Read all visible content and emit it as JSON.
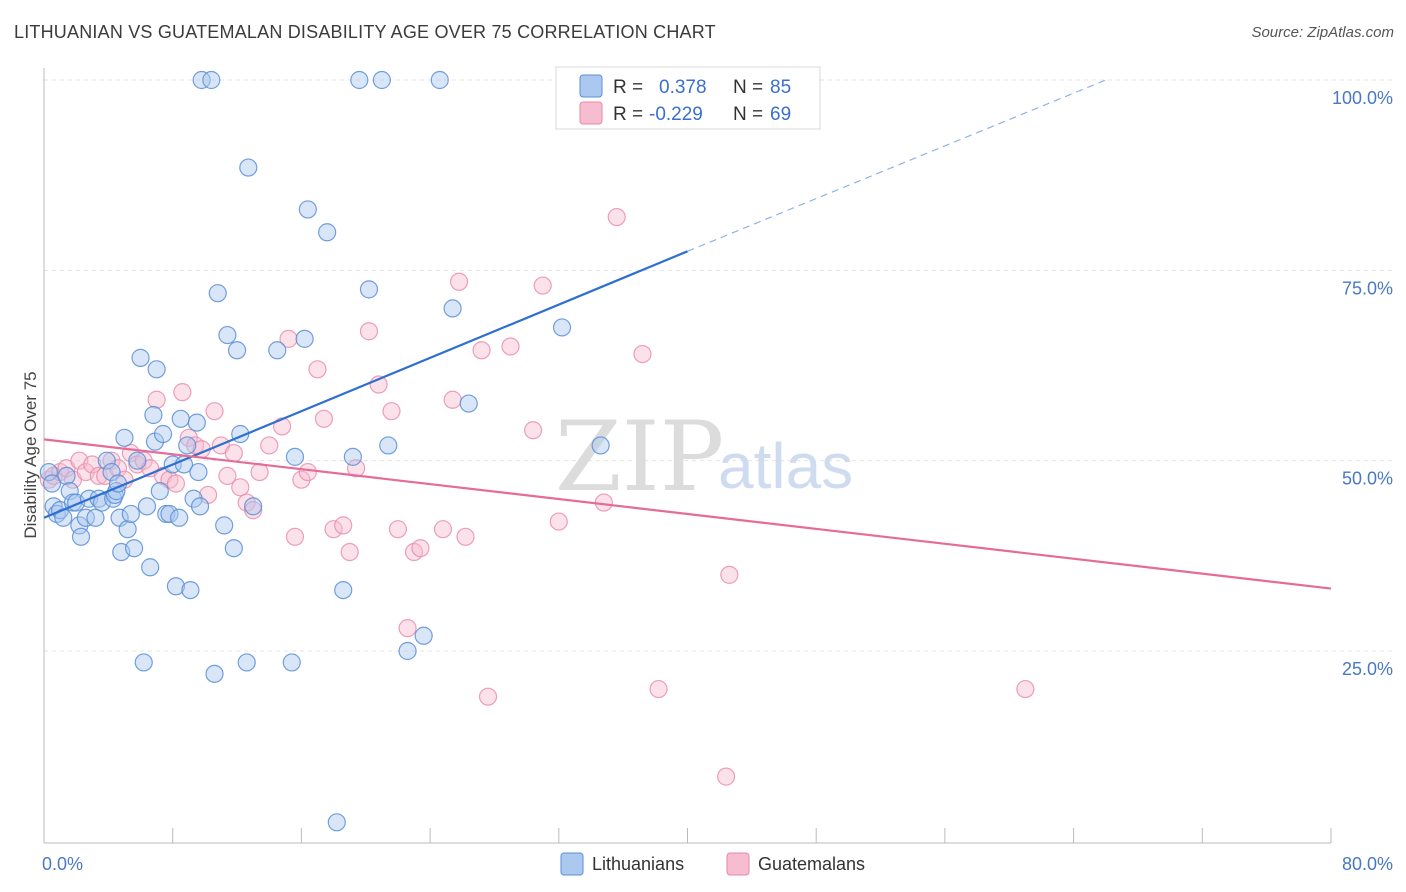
{
  "header": {
    "title": "LITHUANIAN VS GUATEMALAN DISABILITY AGE OVER 75 CORRELATION CHART",
    "source": "Source: ZipAtlas.com"
  },
  "legend": {
    "rows": [
      {
        "r_label": "R =",
        "r_value": "0.378",
        "n_label": "N =",
        "n_value": "85",
        "color": "#aac8f0",
        "stroke": "#5b8fd6"
      },
      {
        "r_label": "R =",
        "r_value": "-0.229",
        "n_label": "N =",
        "n_value": "69",
        "color": "#f6bcd0",
        "stroke": "#e889a8"
      }
    ]
  },
  "watermark": {
    "zip": "ZIP",
    "atlas": "atlas"
  },
  "chart_data": {
    "type": "scatter",
    "title": "LITHUANIAN VS GUATEMALAN DISABILITY AGE OVER 75 CORRELATION CHART",
    "xlabel": "",
    "ylabel": "Disability Age Over 75",
    "xlim": [
      0,
      80
    ],
    "ylim": [
      0,
      105
    ],
    "x_tick_labels": [
      "0.0%",
      "80.0%"
    ],
    "y_tick_labels": [
      "100.0%",
      "75.0%",
      "50.0%",
      "25.0%"
    ],
    "y_ticks": [
      100,
      75,
      50,
      25
    ],
    "grid": true,
    "legend_position": "top-center",
    "series": [
      {
        "name": "Lithuanians",
        "color": "#5b8fd6",
        "fill": "#aac8f0",
        "points": [
          [
            0.3,
            48.5
          ],
          [
            0.5,
            47
          ],
          [
            0.6,
            44
          ],
          [
            0.8,
            43
          ],
          [
            1,
            43.5
          ],
          [
            1.2,
            42.5
          ],
          [
            1.4,
            48
          ],
          [
            1.6,
            46
          ],
          [
            1.8,
            44.5
          ],
          [
            2,
            44.5
          ],
          [
            2.2,
            41.5
          ],
          [
            2.3,
            40
          ],
          [
            2.6,
            42.5
          ],
          [
            2.8,
            45
          ],
          [
            3.2,
            42.5
          ],
          [
            3.4,
            45
          ],
          [
            3.6,
            44.5
          ],
          [
            3.9,
            50
          ],
          [
            4.2,
            48.5
          ],
          [
            4.3,
            45
          ],
          [
            4.4,
            45.5
          ],
          [
            4.5,
            46
          ],
          [
            4.6,
            47
          ],
          [
            4.7,
            42.5
          ],
          [
            4.8,
            38
          ],
          [
            5,
            53
          ],
          [
            5.2,
            41
          ],
          [
            5.4,
            43
          ],
          [
            5.6,
            38.5
          ],
          [
            5.8,
            50
          ],
          [
            6,
            63.5
          ],
          [
            6.2,
            23.5
          ],
          [
            6.4,
            44
          ],
          [
            6.6,
            36
          ],
          [
            6.8,
            56
          ],
          [
            6.9,
            52.5
          ],
          [
            7,
            62
          ],
          [
            7.2,
            46
          ],
          [
            7.4,
            53.5
          ],
          [
            7.6,
            43
          ],
          [
            7.8,
            43
          ],
          [
            8,
            49.5
          ],
          [
            8.2,
            33.5
          ],
          [
            8.4,
            42.5
          ],
          [
            8.5,
            55.5
          ],
          [
            8.7,
            49.5
          ],
          [
            8.9,
            52
          ],
          [
            9.1,
            33
          ],
          [
            9.3,
            45
          ],
          [
            9.5,
            55
          ],
          [
            9.6,
            48.5
          ],
          [
            9.7,
            44
          ],
          [
            9.8,
            100
          ],
          [
            10.4,
            100
          ],
          [
            10.6,
            22
          ],
          [
            10.8,
            72
          ],
          [
            11.2,
            41.5
          ],
          [
            11.4,
            66.5
          ],
          [
            11.8,
            38.5
          ],
          [
            12,
            64.5
          ],
          [
            12.2,
            53.5
          ],
          [
            12.6,
            23.5
          ],
          [
            12.7,
            88.5
          ],
          [
            13,
            44
          ],
          [
            14.5,
            64.5
          ],
          [
            15.4,
            23.5
          ],
          [
            15.6,
            50.5
          ],
          [
            16.2,
            66
          ],
          [
            16.4,
            83
          ],
          [
            17.6,
            80
          ],
          [
            18.2,
            2.5
          ],
          [
            18.6,
            33
          ],
          [
            19.2,
            50.5
          ],
          [
            19.6,
            100
          ],
          [
            20.2,
            72.5
          ],
          [
            21,
            100
          ],
          [
            21.4,
            52
          ],
          [
            22.6,
            25
          ],
          [
            23.6,
            27
          ],
          [
            24.6,
            100
          ],
          [
            25.4,
            70
          ],
          [
            26.4,
            57.5
          ],
          [
            32.2,
            67.5
          ],
          [
            34.6,
            52
          ],
          [
            38,
            100
          ]
        ]
      },
      {
        "name": "Guatemalans",
        "color": "#e889a8",
        "fill": "#f6bcd0",
        "points": [
          [
            0.3,
            47.5
          ],
          [
            0.6,
            48
          ],
          [
            1,
            48.5
          ],
          [
            1.4,
            49
          ],
          [
            1.8,
            47.5
          ],
          [
            2.2,
            50
          ],
          [
            2.6,
            48.5
          ],
          [
            3,
            49.5
          ],
          [
            3.4,
            48
          ],
          [
            3.8,
            48
          ],
          [
            4.2,
            50
          ],
          [
            4.6,
            49
          ],
          [
            5,
            47.5
          ],
          [
            5.4,
            51
          ],
          [
            5.8,
            49.5
          ],
          [
            6.2,
            50
          ],
          [
            6.6,
            49
          ],
          [
            7,
            58
          ],
          [
            7.4,
            48
          ],
          [
            7.8,
            47.5
          ],
          [
            8.2,
            47
          ],
          [
            8.6,
            59
          ],
          [
            9,
            53
          ],
          [
            9.4,
            52
          ],
          [
            9.8,
            51.5
          ],
          [
            10.2,
            45.5
          ],
          [
            10.6,
            56.5
          ],
          [
            11,
            52
          ],
          [
            11.4,
            48
          ],
          [
            11.8,
            51
          ],
          [
            12.2,
            46.5
          ],
          [
            12.6,
            44.5
          ],
          [
            13,
            43.5
          ],
          [
            13.4,
            48.5
          ],
          [
            14,
            52
          ],
          [
            14.8,
            54.5
          ],
          [
            15.2,
            66
          ],
          [
            15.6,
            40
          ],
          [
            16,
            47.5
          ],
          [
            16.4,
            48.5
          ],
          [
            17,
            62
          ],
          [
            17.4,
            55.5
          ],
          [
            18,
            41
          ],
          [
            18.6,
            41.5
          ],
          [
            19,
            38
          ],
          [
            19.4,
            49
          ],
          [
            20.2,
            67
          ],
          [
            20.8,
            60
          ],
          [
            21.6,
            56.5
          ],
          [
            22,
            41
          ],
          [
            22.6,
            28
          ],
          [
            23,
            38
          ],
          [
            23.4,
            38.5
          ],
          [
            24.8,
            41
          ],
          [
            25.4,
            58
          ],
          [
            25.8,
            73.5
          ],
          [
            26.2,
            40
          ],
          [
            27.2,
            64.5
          ],
          [
            27.6,
            19
          ],
          [
            29,
            65
          ],
          [
            30.4,
            54
          ],
          [
            31,
            73
          ],
          [
            32,
            42
          ],
          [
            34.8,
            44.5
          ],
          [
            35.6,
            82
          ],
          [
            37.2,
            64
          ],
          [
            38.2,
            20
          ],
          [
            42.4,
            8.5
          ],
          [
            42.6,
            35
          ],
          [
            61,
            20
          ]
        ]
      }
    ],
    "trendlines": [
      {
        "series": "Lithuanians",
        "x_start": 0,
        "y_start": 42.5,
        "x_solid_end": 40,
        "y_solid_end": 77.5,
        "x_dash_end": 66,
        "y_dash_end": 100
      },
      {
        "series": "Guatemalans",
        "x_start": 0,
        "y_start": 52.8,
        "x_end": 80,
        "y_end": 33.2
      }
    ]
  },
  "bottom_legend": [
    {
      "label": "Lithuanians",
      "fill": "#aac8f0",
      "stroke": "#5b8fd6"
    },
    {
      "label": "Guatemalans",
      "fill": "#f6bcd0",
      "stroke": "#e889a8"
    }
  ]
}
